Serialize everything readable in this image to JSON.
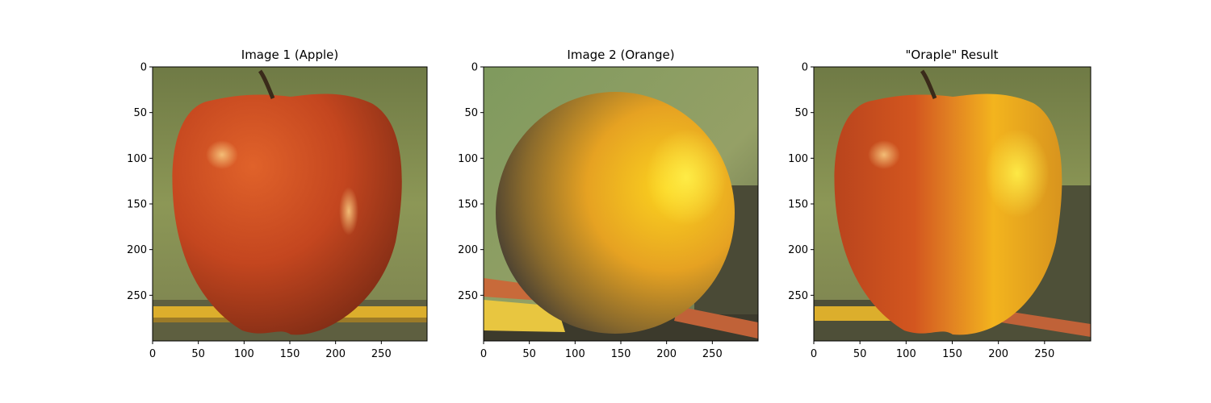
{
  "figure": {
    "panels": [
      {
        "title": "Image 1 (Apple)",
        "subject": "apple",
        "x_ticks": [
          "0",
          "50",
          "100",
          "150",
          "200",
          "250"
        ],
        "y_ticks": [
          "0",
          "50",
          "100",
          "150",
          "200",
          "250"
        ],
        "x_tick_values": [
          0,
          50,
          100,
          150,
          200,
          250
        ],
        "y_tick_values": [
          0,
          50,
          100,
          150,
          200,
          250
        ],
        "extent": [
          300,
          300
        ]
      },
      {
        "title": "Image 2 (Orange)",
        "subject": "orange",
        "x_ticks": [
          "0",
          "50",
          "100",
          "150",
          "200",
          "250"
        ],
        "y_ticks": [
          "0",
          "50",
          "100",
          "150",
          "200",
          "250"
        ],
        "x_tick_values": [
          0,
          50,
          100,
          150,
          200,
          250
        ],
        "y_tick_values": [
          0,
          50,
          100,
          150,
          200,
          250
        ],
        "extent": [
          300,
          300
        ]
      },
      {
        "title": "\"Oraple\" Result",
        "subject": "blend",
        "x_ticks": [
          "0",
          "50",
          "100",
          "150",
          "200",
          "250"
        ],
        "y_ticks": [
          "0",
          "50",
          "100",
          "150",
          "200",
          "250"
        ],
        "x_tick_values": [
          0,
          50,
          100,
          150,
          200,
          250
        ],
        "y_tick_values": [
          0,
          50,
          100,
          150,
          200,
          250
        ],
        "extent": [
          300,
          300
        ]
      }
    ],
    "colors": {
      "background_green": "#8a9a5c",
      "apple_red": "#c0421c",
      "orange_yellow": "#f2b41c",
      "pencil_yellow": "#e0b030"
    }
  }
}
